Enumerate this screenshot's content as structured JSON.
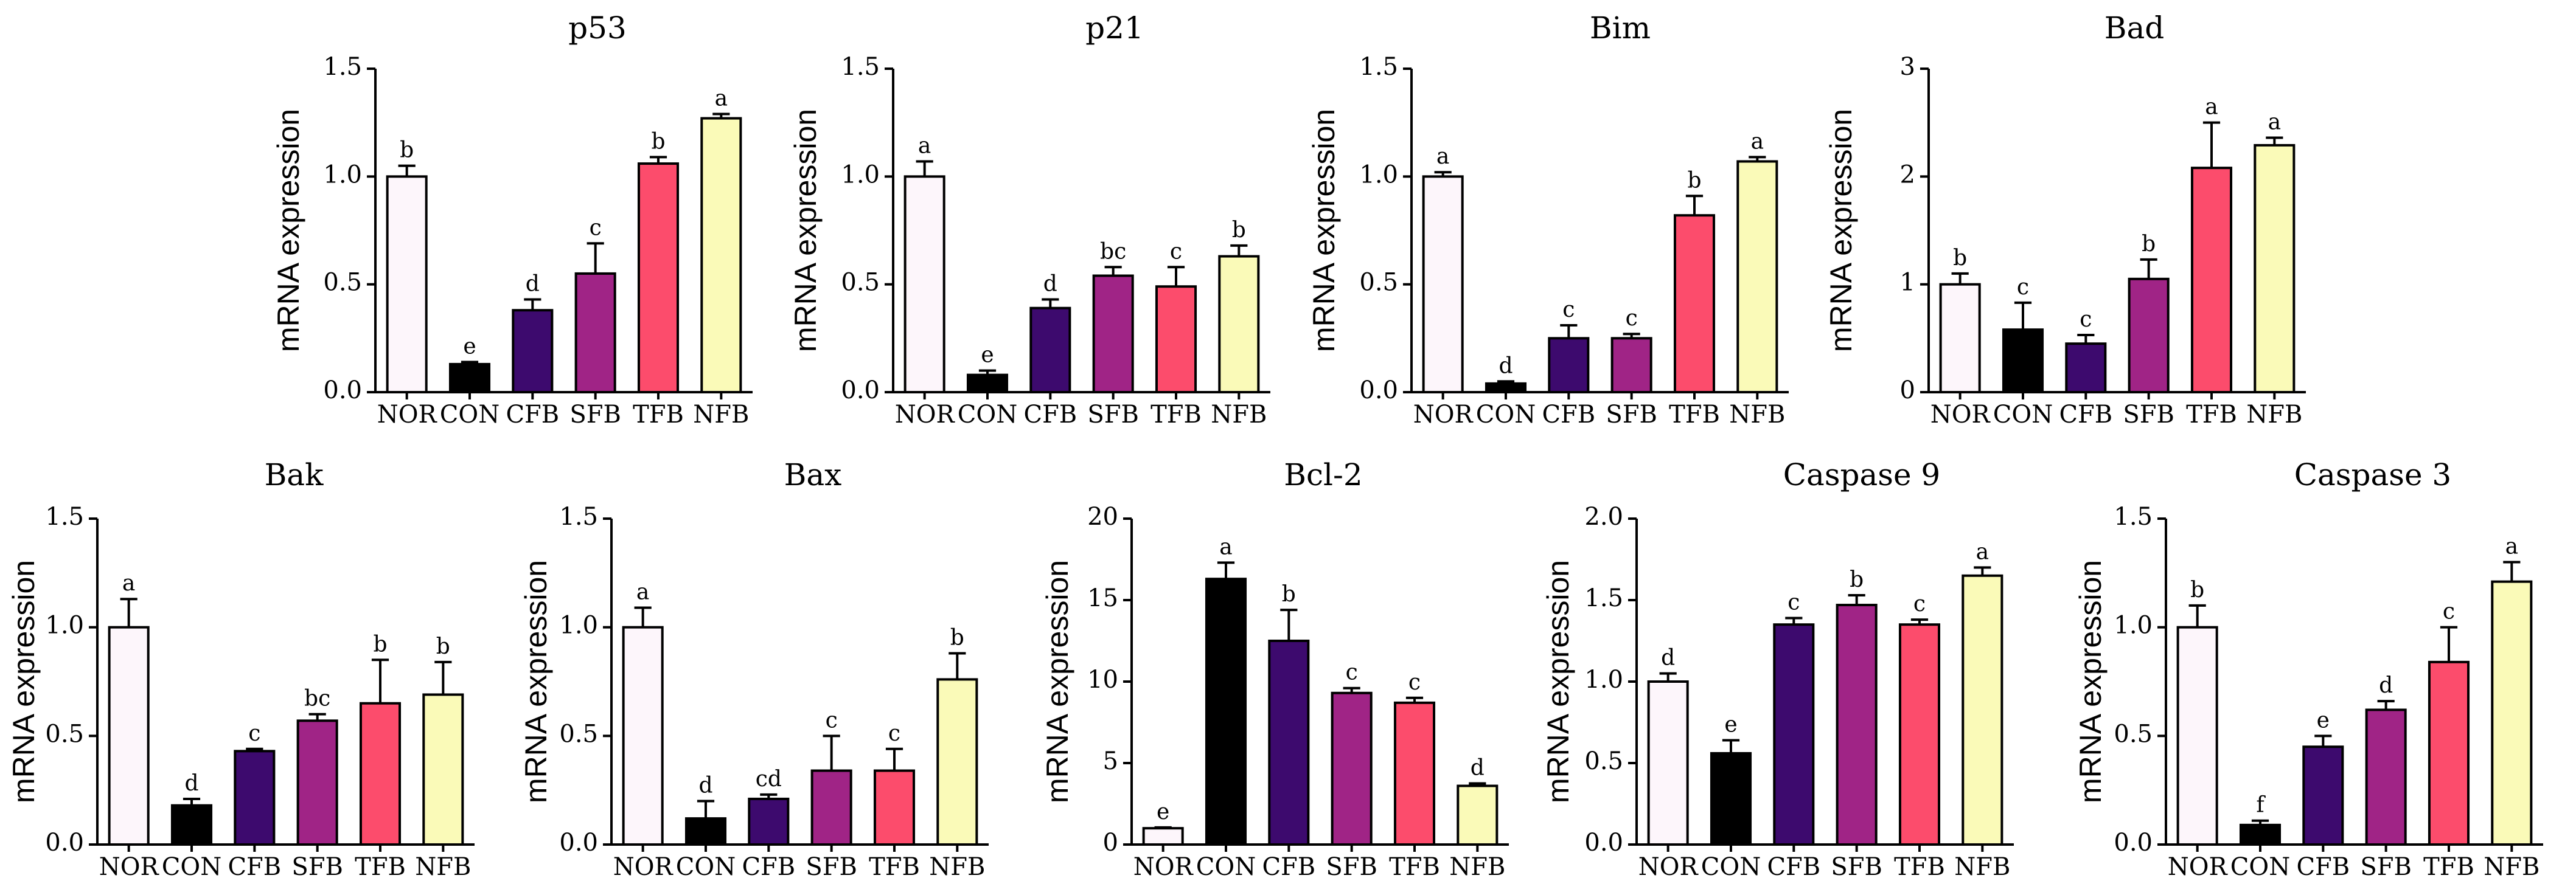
{
  "chart_data": [
    {
      "type": "bar",
      "title": "p53",
      "ylabel": "mRNA expression",
      "ylim": [
        0,
        1.5
      ],
      "yticks": [
        "0.0",
        "0.5",
        "1.0",
        "1.5"
      ],
      "categories": [
        "NOR",
        "CON",
        "CFB",
        "SFB",
        "TFB",
        "NFB"
      ],
      "values": [
        1.0,
        0.13,
        0.38,
        0.55,
        1.06,
        1.27
      ],
      "errors": [
        0.05,
        0.01,
        0.05,
        0.14,
        0.03,
        0.02
      ],
      "letters": [
        "b",
        "e",
        "d",
        "c",
        "b",
        "a"
      ]
    },
    {
      "type": "bar",
      "title": "p21",
      "ylabel": "mRNA expression",
      "ylim": [
        0,
        1.5
      ],
      "yticks": [
        "0.0",
        "0.5",
        "1.0",
        "1.5"
      ],
      "categories": [
        "NOR",
        "CON",
        "CFB",
        "SFB",
        "TFB",
        "NFB"
      ],
      "values": [
        1.0,
        0.08,
        0.39,
        0.54,
        0.49,
        0.63
      ],
      "errors": [
        0.07,
        0.02,
        0.04,
        0.04,
        0.09,
        0.05
      ],
      "letters": [
        "a",
        "e",
        "d",
        "bc",
        "c",
        "b"
      ]
    },
    {
      "type": "bar",
      "title": "Bim",
      "ylabel": "mRNA expression",
      "ylim": [
        0,
        1.5
      ],
      "yticks": [
        "0.0",
        "0.5",
        "1.0",
        "1.5"
      ],
      "categories": [
        "NOR",
        "CON",
        "CFB",
        "SFB",
        "TFB",
        "NFB"
      ],
      "values": [
        1.0,
        0.04,
        0.25,
        0.25,
        0.82,
        1.07
      ],
      "errors": [
        0.02,
        0.01,
        0.06,
        0.02,
        0.09,
        0.02
      ],
      "letters": [
        "a",
        "d",
        "c",
        "c",
        "b",
        "a"
      ]
    },
    {
      "type": "bar",
      "title": "Bad",
      "ylabel": "mRNA expression",
      "ylim": [
        0,
        3
      ],
      "yticks": [
        "0",
        "1",
        "2",
        "3"
      ],
      "categories": [
        "NOR",
        "CON",
        "CFB",
        "SFB",
        "TFB",
        "NFB"
      ],
      "values": [
        1.0,
        0.58,
        0.45,
        1.05,
        2.08,
        2.29
      ],
      "errors": [
        0.1,
        0.25,
        0.08,
        0.18,
        0.42,
        0.07
      ],
      "letters": [
        "b",
        "c",
        "c",
        "b",
        "a",
        "a"
      ]
    },
    {
      "type": "bar",
      "title": "Bak",
      "ylabel": "mRNA expression",
      "ylim": [
        0,
        1.5
      ],
      "yticks": [
        "0.0",
        "0.5",
        "1.0",
        "1.5"
      ],
      "categories": [
        "NOR",
        "CON",
        "CFB",
        "SFB",
        "TFB",
        "NFB"
      ],
      "values": [
        1.0,
        0.18,
        0.43,
        0.57,
        0.65,
        0.69
      ],
      "errors": [
        0.13,
        0.03,
        0.01,
        0.03,
        0.2,
        0.15
      ],
      "letters": [
        "a",
        "d",
        "c",
        "bc",
        "b",
        "b"
      ]
    },
    {
      "type": "bar",
      "title": "Bax",
      "ylabel": "mRNA expression",
      "ylim": [
        0,
        1.5
      ],
      "yticks": [
        "0.0",
        "0.5",
        "1.0",
        "1.5"
      ],
      "categories": [
        "NOR",
        "CON",
        "CFB",
        "SFB",
        "TFB",
        "NFB"
      ],
      "values": [
        1.0,
        0.12,
        0.21,
        0.34,
        0.34,
        0.76
      ],
      "errors": [
        0.09,
        0.08,
        0.02,
        0.16,
        0.1,
        0.12
      ],
      "letters": [
        "a",
        "d",
        "cd",
        "c",
        "c",
        "b"
      ]
    },
    {
      "type": "bar",
      "title": "Bcl-2",
      "ylabel": "mRNA expression",
      "ylim": [
        0,
        20
      ],
      "yticks": [
        "0",
        "5",
        "10",
        "15",
        "20"
      ],
      "categories": [
        "NOR",
        "CON",
        "CFB",
        "SFB",
        "TFB",
        "NFB"
      ],
      "values": [
        1.0,
        16.3,
        12.5,
        9.3,
        8.7,
        3.6
      ],
      "errors": [
        0.05,
        1.0,
        1.9,
        0.3,
        0.3,
        0.15
      ],
      "letters": [
        "e",
        "a",
        "b",
        "c",
        "c",
        "d"
      ]
    },
    {
      "type": "bar",
      "title": "Caspase 9",
      "ylabel": "mRNA expression",
      "ylim": [
        0,
        2.0
      ],
      "yticks": [
        "0.0",
        "0.5",
        "1.0",
        "1.5",
        "2.0"
      ],
      "categories": [
        "NOR",
        "CON",
        "CFB",
        "SFB",
        "TFB",
        "NFB"
      ],
      "values": [
        1.0,
        0.56,
        1.35,
        1.47,
        1.35,
        1.65
      ],
      "errors": [
        0.05,
        0.08,
        0.04,
        0.06,
        0.03,
        0.05
      ],
      "letters": [
        "d",
        "e",
        "c",
        "b",
        "c",
        "a"
      ]
    },
    {
      "type": "bar",
      "title": "Caspase 3",
      "ylabel": "mRNA expression",
      "ylim": [
        0,
        1.5
      ],
      "yticks": [
        "0.0",
        "0.5",
        "1.0",
        "1.5"
      ],
      "categories": [
        "NOR",
        "CON",
        "CFB",
        "SFB",
        "TFB",
        "NFB"
      ],
      "values": [
        1.0,
        0.09,
        0.45,
        0.62,
        0.84,
        1.21
      ],
      "errors": [
        0.1,
        0.02,
        0.05,
        0.04,
        0.16,
        0.09
      ],
      "letters": [
        "b",
        "f",
        "e",
        "d",
        "c",
        "a"
      ]
    }
  ],
  "colors": {
    "NOR": "#fdf6fb",
    "CON": "#000000",
    "CFB": "#3d0a6e",
    "SFB": "#a02486",
    "TFB": "#fc4c6c",
    "NFB": "#fafab8"
  }
}
